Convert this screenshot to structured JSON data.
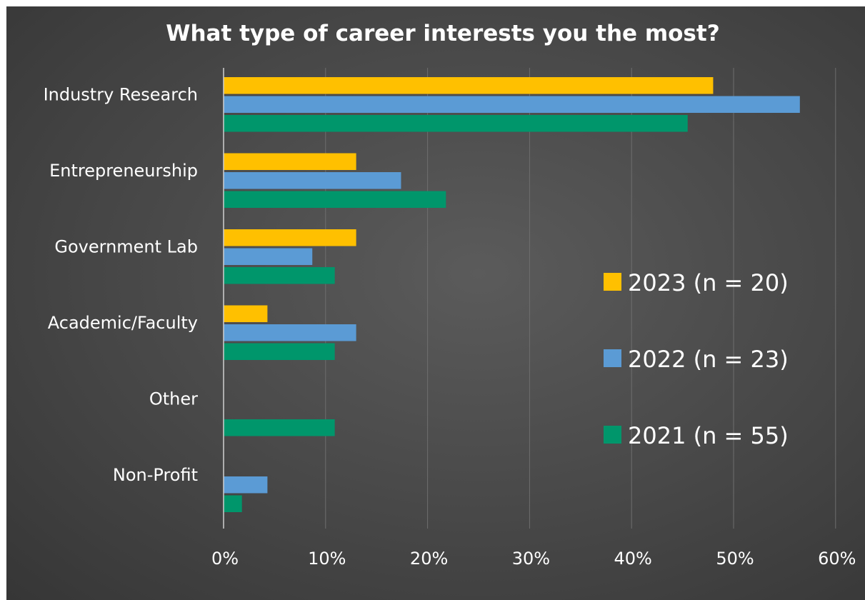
{
  "chart_data": {
    "type": "bar",
    "orientation": "horizontal",
    "title": "What type of career interests you the most?",
    "xlabel": "",
    "ylabel": "",
    "categories": [
      "Industry Research",
      "Entrepreneurship",
      "Government Lab",
      "Academic/Faculty",
      "Other",
      "Non-Profit"
    ],
    "series": [
      {
        "name": "2023 (n = 20)",
        "color": "#ffc000",
        "values": [
          48,
          13,
          13,
          4.3,
          0,
          0
        ]
      },
      {
        "name": "2022 (n = 23)",
        "color": "#5b9bd5",
        "values": [
          56.5,
          17.4,
          8.7,
          13,
          0,
          4.3
        ]
      },
      {
        "name": "2021 (n = 55)",
        "color": "#00966b",
        "values": [
          45.5,
          21.8,
          10.9,
          10.9,
          10.9,
          1.8
        ]
      }
    ],
    "xlim": [
      0,
      60
    ],
    "xticks": [
      0,
      10,
      20,
      30,
      40,
      50,
      60
    ],
    "xtick_labels": [
      "0%",
      "10%",
      "20%",
      "30%",
      "40%",
      "50%",
      "60%"
    ],
    "grid": true,
    "legend_position": "right"
  }
}
